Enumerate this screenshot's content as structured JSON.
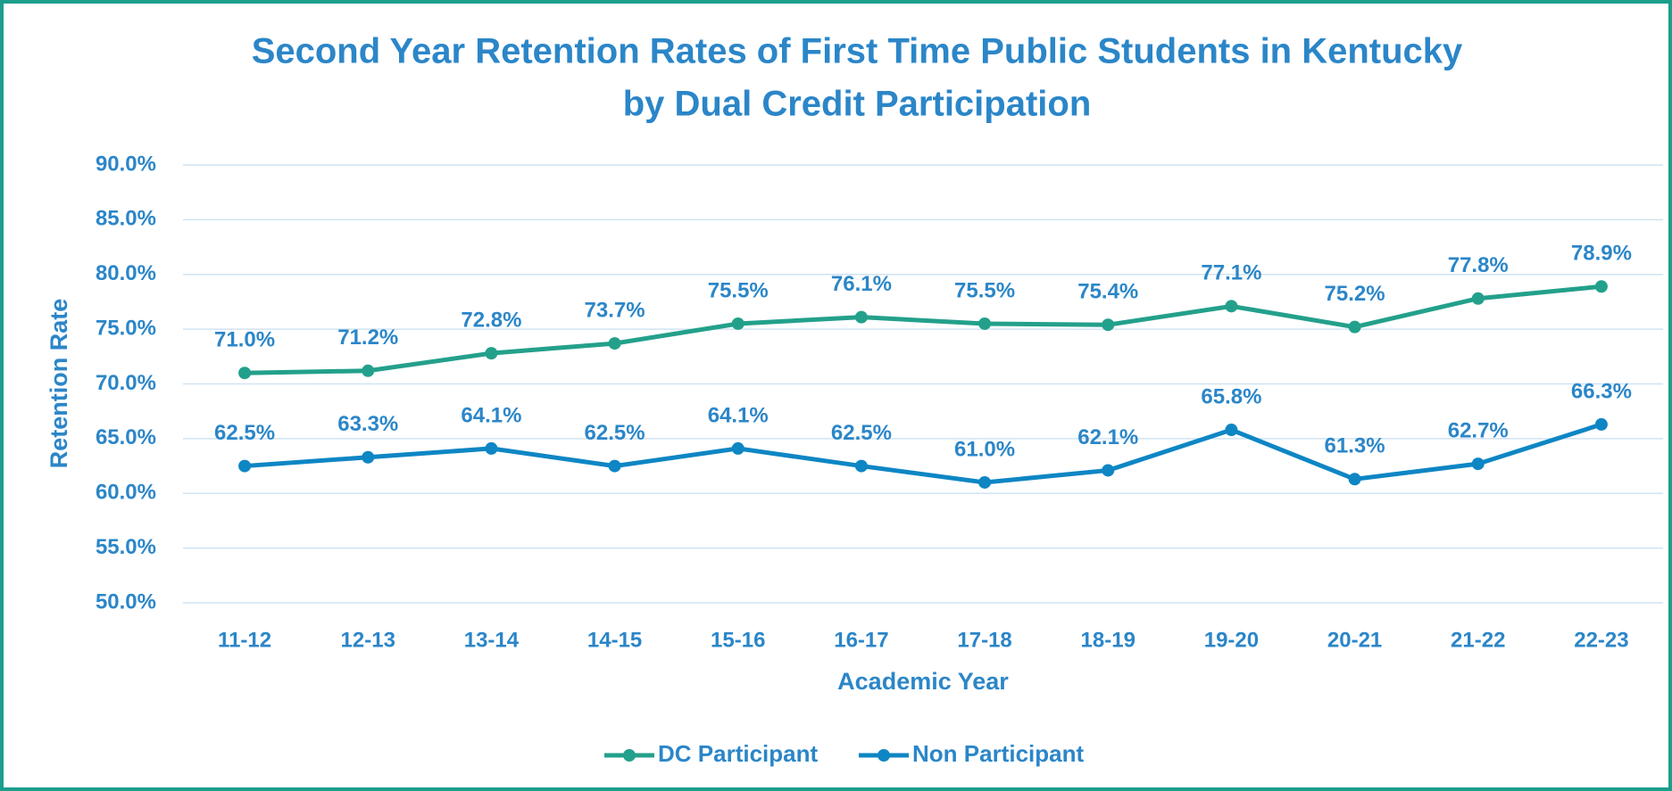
{
  "chart_data": {
    "type": "line",
    "title": [
      "Second Year Retention Rates of First Time Public Students in Kentucky",
      "by Dual Credit Participation"
    ],
    "x_label": "Academic Year",
    "y_label": "Retention Rate",
    "categories": [
      "11-12",
      "12-13",
      "13-14",
      "14-15",
      "15-16",
      "16-17",
      "17-18",
      "18-19",
      "19-20",
      "20-21",
      "21-22",
      "22-23"
    ],
    "series": [
      {
        "name": "DC Participant",
        "color": "#23a08b",
        "values": [
          71.0,
          71.2,
          72.8,
          73.7,
          75.5,
          76.1,
          75.5,
          75.4,
          77.1,
          75.2,
          77.8,
          78.9
        ],
        "value_labels": [
          "71.0%",
          "71.2%",
          "72.8%",
          "73.7%",
          "75.5%",
          "76.1%",
          "75.5%",
          "75.4%",
          "77.1%",
          "75.2%",
          "77.8%",
          "78.9%"
        ]
      },
      {
        "name": "Non Participant",
        "color": "#0e86c4",
        "values": [
          62.5,
          63.3,
          64.1,
          62.5,
          64.1,
          62.5,
          61.0,
          62.1,
          65.8,
          61.3,
          62.7,
          66.3
        ],
        "value_labels": [
          "62.5%",
          "63.3%",
          "64.1%",
          "62.5%",
          "64.1%",
          "62.5%",
          "61.0%",
          "62.1%",
          "65.8%",
          "61.3%",
          "62.7%",
          "66.3%"
        ]
      }
    ],
    "ylim": [
      50,
      90
    ],
    "yticks": [
      {
        "value": 50,
        "label": "50.0%"
      },
      {
        "value": 55,
        "label": "55.0%"
      },
      {
        "value": 60,
        "label": "60.0%"
      },
      {
        "value": 65,
        "label": "65.0%"
      },
      {
        "value": 70,
        "label": "70.0%"
      },
      {
        "value": 75,
        "label": "75.0%"
      },
      {
        "value": 80,
        "label": "80.0%"
      },
      {
        "value": 85,
        "label": "85.0%"
      },
      {
        "value": 90,
        "label": "90.0%"
      }
    ],
    "grid": true,
    "legend": "bottom"
  }
}
